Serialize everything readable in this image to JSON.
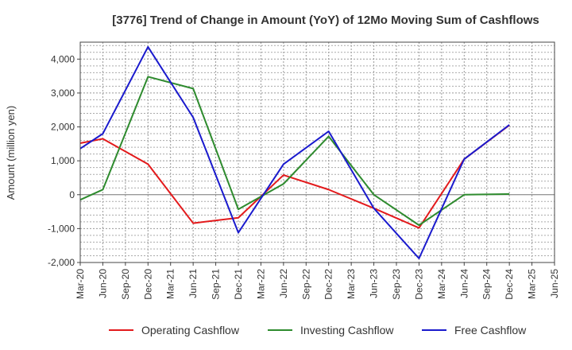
{
  "chart_data": {
    "type": "line",
    "title": "[3776]  Trend of Change in Amount (YoY) of 12Mo Moving Sum of Cashflows",
    "xlabel": "",
    "ylabel": "Amount (million yen)",
    "ylim": [
      -2000,
      4500
    ],
    "yticks": [
      -2000,
      -1000,
      0,
      1000,
      2000,
      3000,
      4000
    ],
    "ytick_labels": [
      "-2,000",
      "-1,000",
      "0",
      "1,000",
      "2,000",
      "3,000",
      "4,000"
    ],
    "grid": true,
    "legend_position": "bottom",
    "categories": [
      "Mar-20",
      "Jun-20",
      "Sep-20",
      "Dec-20",
      "Mar-21",
      "Jun-21",
      "Sep-21",
      "Dec-21",
      "Mar-22",
      "Jun-22",
      "Sep-22",
      "Dec-22",
      "Mar-23",
      "Jun-23",
      "Sep-23",
      "Dec-23",
      "Mar-24",
      "Jun-24",
      "Sep-24",
      "Dec-24",
      "Mar-25",
      "Jun-25"
    ],
    "series": [
      {
        "name": "Operating Cashflow",
        "color": "#e31a1c",
        "values": [
          1520,
          1650,
          null,
          900,
          null,
          -840,
          null,
          -680,
          null,
          580,
          null,
          150,
          null,
          -400,
          null,
          -980,
          null,
          1050,
          null,
          2050,
          null,
          null
        ]
      },
      {
        "name": "Investing Cashflow",
        "color": "#2e8b2e",
        "values": [
          -150,
          150,
          null,
          3480,
          null,
          3130,
          null,
          -430,
          null,
          320,
          null,
          1720,
          null,
          0,
          null,
          -900,
          null,
          0,
          null,
          20,
          null,
          null
        ]
      },
      {
        "name": "Free Cashflow",
        "color": "#1a1acd",
        "values": [
          1360,
          1800,
          null,
          4360,
          null,
          2280,
          null,
          -1120,
          null,
          900,
          null,
          1870,
          null,
          -400,
          null,
          -1880,
          null,
          1050,
          null,
          2060,
          null,
          null
        ]
      }
    ]
  }
}
